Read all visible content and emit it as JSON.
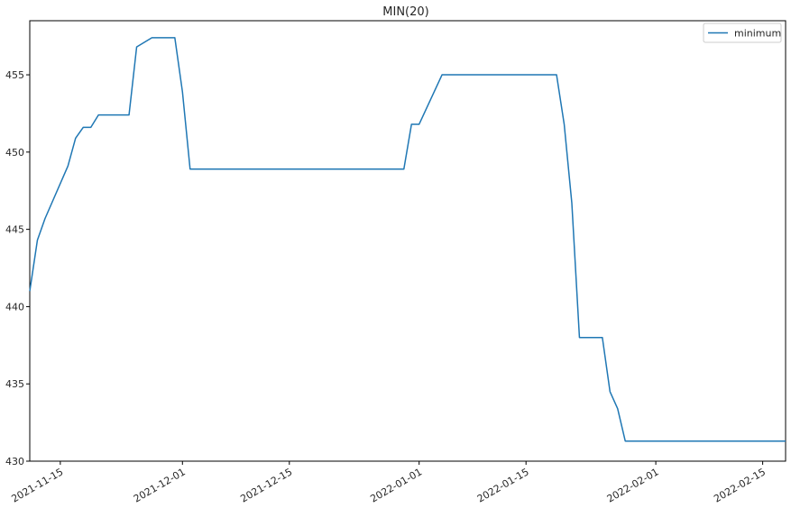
{
  "chart_data": {
    "type": "line",
    "title": "MIN(20)",
    "xlabel": "",
    "ylabel": "",
    "legend": {
      "placement": "top-right",
      "entries": [
        "minimum"
      ]
    },
    "grid": false,
    "xlim": [
      "2021-11-11",
      "2022-02-18"
    ],
    "ylim": [
      430,
      458.5
    ],
    "x_ticks": [
      "2021-11-15",
      "2021-12-01",
      "2021-12-15",
      "2022-01-01",
      "2022-01-15",
      "2022-02-01",
      "2022-02-15"
    ],
    "y_ticks": [
      430,
      435,
      440,
      445,
      450,
      455
    ],
    "series": [
      {
        "name": "minimum",
        "color": "#1f77b4",
        "points": [
          [
            "2021-11-11",
            441.0
          ],
          [
            "2021-11-12",
            444.3
          ],
          [
            "2021-11-13",
            445.7
          ],
          [
            "2021-11-16",
            449.1
          ],
          [
            "2021-11-17",
            450.9
          ],
          [
            "2021-11-18",
            451.6
          ],
          [
            "2021-11-19",
            451.6
          ],
          [
            "2021-11-20",
            452.4
          ],
          [
            "2021-11-24",
            452.4
          ],
          [
            "2021-11-25",
            456.8
          ],
          [
            "2021-11-27",
            457.4
          ],
          [
            "2021-11-30",
            457.4
          ],
          [
            "2021-12-01",
            453.9
          ],
          [
            "2021-12-02",
            448.9
          ],
          [
            "2021-12-30",
            448.9
          ],
          [
            "2021-12-31",
            451.8
          ],
          [
            "2022-01-01",
            451.8
          ],
          [
            "2022-01-04",
            455.0
          ],
          [
            "2022-01-19",
            455.0
          ],
          [
            "2022-01-20",
            451.8
          ],
          [
            "2022-01-21",
            446.7
          ],
          [
            "2022-01-22",
            438.0
          ],
          [
            "2022-01-25",
            438.0
          ],
          [
            "2022-01-26",
            434.5
          ],
          [
            "2022-01-27",
            433.4
          ],
          [
            "2022-01-28",
            431.3
          ],
          [
            "2022-02-18",
            431.3
          ]
        ]
      }
    ]
  }
}
